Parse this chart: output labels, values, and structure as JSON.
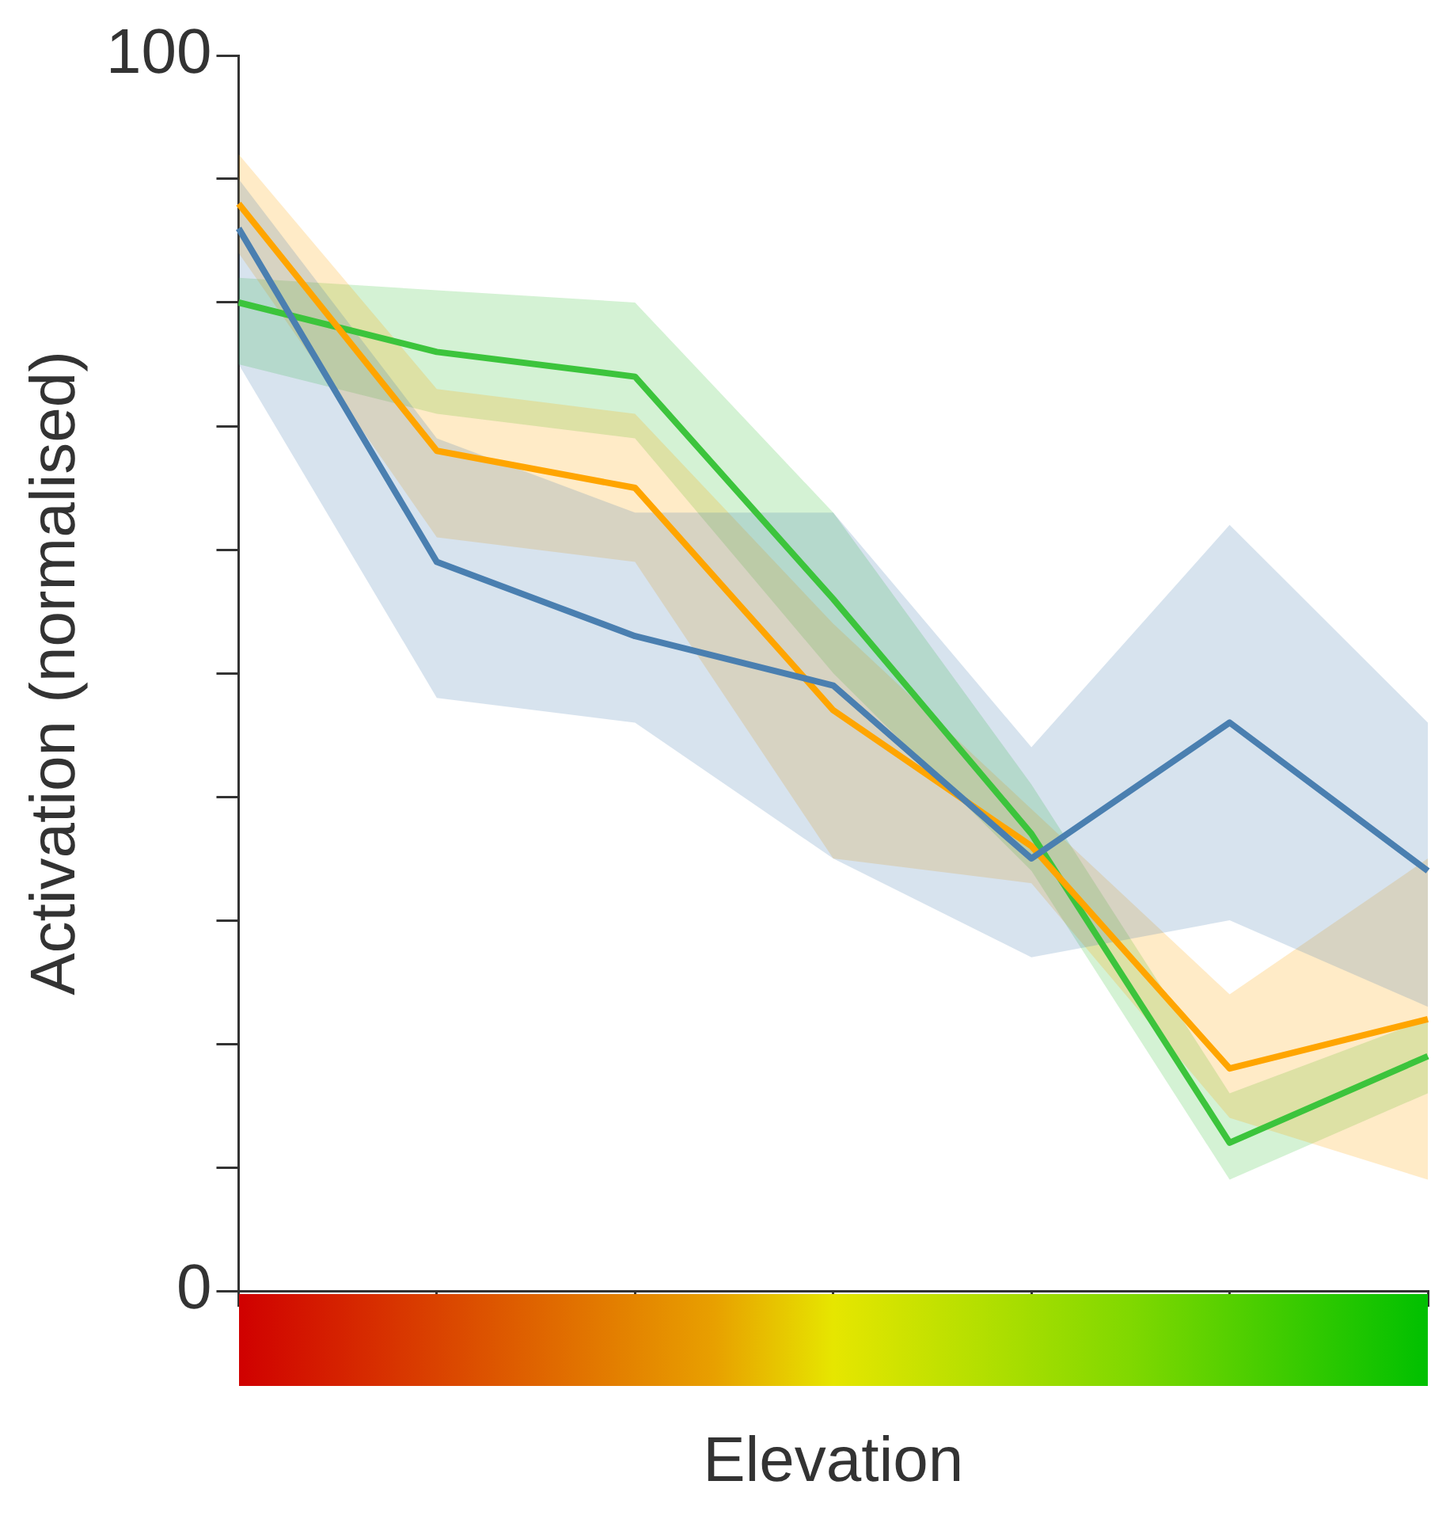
{
  "chart_data": {
    "type": "line",
    "xlabel": "Elevation",
    "ylabel": "Activation (normalised)",
    "categories": [
      null,
      null,
      null,
      null,
      null,
      null,
      null
    ],
    "series": [
      {
        "color": "#4a7fb0",
        "values": [
          86,
          59,
          53,
          49,
          35,
          46,
          34
        ],
        "lower": [
          75,
          48,
          46,
          35,
          27,
          30,
          23
        ],
        "upper": [
          90,
          69,
          63,
          63,
          44,
          62,
          46
        ]
      },
      {
        "color": "#ffa500",
        "values": [
          88,
          68,
          65,
          47,
          36,
          18,
          22
        ],
        "lower": [
          84,
          61,
          59,
          35,
          33,
          14,
          9
        ],
        "upper": [
          92,
          73,
          71,
          54,
          39,
          24,
          35
        ]
      },
      {
        "color": "#3cc43c",
        "values": [
          80,
          76,
          74,
          56,
          37,
          12,
          19
        ],
        "lower": [
          75,
          71,
          69,
          50,
          34,
          9,
          16
        ],
        "upper": [
          82,
          81,
          80,
          63,
          41,
          16,
          22
        ]
      }
    ],
    "ylim": [
      0,
      100
    ],
    "yticks": [
      0,
      {
        "value": 10,
        "label": null
      },
      {
        "value": 20,
        "label": null
      },
      {
        "value": 30,
        "label": null
      },
      {
        "value": 40,
        "label": null
      },
      {
        "value": 50,
        "label": null
      },
      {
        "value": 60,
        "label": null
      },
      {
        "value": 70,
        "label": null
      },
      {
        "value": 80,
        "label": null
      },
      {
        "value": 90,
        "label": null
      },
      100
    ],
    "tick_labels": "y",
    "grid": false,
    "legend": false,
    "marker": "none",
    "line_style": "solid"
  }
}
